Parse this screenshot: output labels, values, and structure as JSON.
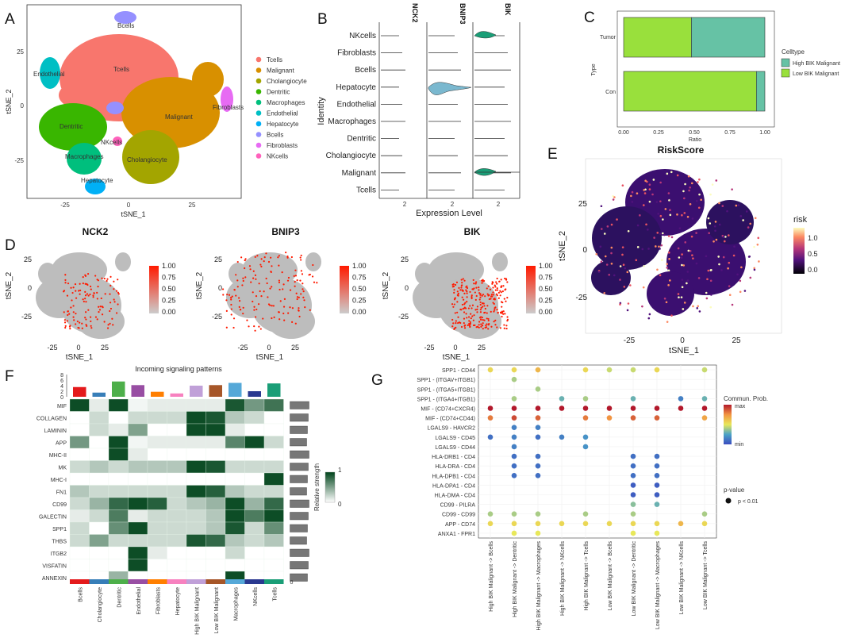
{
  "panels": {
    "A": {
      "label": "A",
      "legend": [
        {
          "name": "Tcells",
          "color": "#f8766d"
        },
        {
          "name": "Malignant",
          "color": "#d89000"
        },
        {
          "name": "Cholangiocyte",
          "color": "#a3a500"
        },
        {
          "name": "Dentritic",
          "color": "#39b600"
        },
        {
          "name": "Macrophages",
          "color": "#00bf7d"
        },
        {
          "name": "Endothelial",
          "color": "#00bfc4"
        },
        {
          "name": "Hepatocyte",
          "color": "#00b0f6"
        },
        {
          "name": "Bcells",
          "color": "#9590ff"
        },
        {
          "name": "Fibroblasts",
          "color": "#e76bf3"
        },
        {
          "name": "NKcells",
          "color": "#ff62bc"
        }
      ],
      "cluster_labels": [
        "Bcells",
        "Tcells",
        "Endothelial",
        "Malignant",
        "Fibroblasts",
        "Dentritic",
        "NKcells",
        "Macrophages",
        "Cholangiocyte",
        "Hepatocyte"
      ],
      "xlabel": "tSNE_1",
      "ylabel": "tSNE_2",
      "xticks": [
        "-25",
        "0",
        "25"
      ],
      "yticks": [
        "25",
        "0",
        "-25"
      ]
    },
    "B": {
      "label": "B",
      "genes": [
        "NCK2",
        "BNIP3",
        "BIK"
      ],
      "rows": [
        "NKcells",
        "Fibroblasts",
        "Bcells",
        "Hepatocyte",
        "Endothelial",
        "Macrophages",
        "Dentritic",
        "Cholangiocyte",
        "Malignant",
        "Tcells"
      ],
      "ylabel": "Identity",
      "xlabel": "Expression Level",
      "xtick": "2"
    },
    "C": {
      "label": "C",
      "title_legend": "Celltype",
      "xlabel": "Ratio",
      "ylabel": "Type",
      "xticks": [
        "0.00",
        "0.25",
        "0.50",
        "0.75",
        "1.00"
      ]
    },
    "D": {
      "label": "D",
      "xlabel": "tSNE_1",
      "ylabel": "tSNE_2",
      "xticks": [
        "-25",
        "0",
        "25"
      ],
      "yticks": [
        "25",
        "0",
        "-25"
      ],
      "colorbar_ticks": [
        "1.00",
        "0.75",
        "0.50",
        "0.25",
        "0.00"
      ]
    },
    "E": {
      "label": "E",
      "title": "RiskScore",
      "legend_title": "risk",
      "colorbar_ticks": [
        "1.0",
        "0.5",
        "0.0"
      ],
      "xlabel": "tSNE_1",
      "ylabel": "tSNE_2",
      "xticks": [
        "-25",
        "0",
        "25"
      ],
      "yticks": [
        "25",
        "0",
        "-25"
      ]
    },
    "F": {
      "label": "F"
    },
    "G": {
      "label": "G",
      "legend_title": "Commun. Prob.",
      "legend_max": "max",
      "legend_min": "min",
      "pvalue_title": "p-value",
      "pvalue_label": "p < 0.01"
    }
  },
  "chart_data": [
    {
      "type": "bar",
      "panel": "C",
      "categories": [
        "Tumor",
        "Con"
      ],
      "series": [
        {
          "name": "High BIK Malignant",
          "color": "#66c2a5",
          "values": [
            0.52,
            0.06
          ]
        },
        {
          "name": "Low BIK Malignant",
          "color": "#99e03c",
          "values": [
            0.48,
            0.94
          ]
        }
      ],
      "xlabel": "Ratio",
      "ylabel": "Type",
      "xlim": [
        0,
        1
      ],
      "stacked": true
    },
    {
      "type": "heatmap",
      "panel": "D",
      "titles": [
        "NCK2",
        "BNIP3",
        "BIK"
      ],
      "color_range": [
        0,
        1
      ]
    },
    {
      "type": "heatmap",
      "panel": "F",
      "title": "Incoming signaling patterns",
      "columns": [
        "Bcells",
        "Cholangiocyte",
        "Dentritic",
        "Endothelial",
        "Fibroblasts",
        "Hepatocyte",
        "High BIK Malignant",
        "Low BIK Malignant",
        "Macrophages",
        "NKcells",
        "Tcells"
      ],
      "column_colors": [
        "#e41a1c",
        "#377eb8",
        "#4daf4a",
        "#984ea3",
        "#ff7f00",
        "#f781bf",
        "#c0a0d8",
        "#a65628",
        "#55a8d8",
        "#2a3990",
        "#1a9e77"
      ],
      "top_bar_values": [
        3.5,
        1.5,
        5.5,
        4.2,
        1.8,
        1.2,
        4.0,
        4.2,
        5.0,
        2.0,
        4.8
      ],
      "top_axis_ticks": [
        "0",
        "2",
        "4",
        "6",
        "8"
      ],
      "rows": [
        "MIF",
        "COLLAGEN",
        "LAMININ",
        "APP",
        "MHC-II",
        "MK",
        "MHC-I",
        "FN1",
        "CD99",
        "GALECTIN",
        "SPP1",
        "THBS",
        "ITGB2",
        "VISFATIN",
        "ANNEXIN"
      ],
      "values": [
        [
          0.95,
          0.1,
          0.95,
          0.05,
          0.1,
          0.1,
          0.1,
          0.1,
          0.9,
          0.55,
          0.75
        ],
        [
          0.0,
          0.2,
          0.0,
          0.2,
          0.2,
          0.2,
          0.95,
          0.9,
          0.3,
          0.2,
          0.0
        ],
        [
          0.0,
          0.2,
          0.1,
          0.5,
          0.0,
          0.0,
          0.95,
          0.95,
          0.1,
          0.0,
          0.0
        ],
        [
          0.55,
          0.0,
          0.95,
          0.05,
          0.1,
          0.1,
          0.1,
          0.1,
          0.65,
          0.95,
          0.2
        ],
        [
          0.0,
          0.0,
          0.95,
          0.1,
          0.0,
          0.0,
          0.0,
          0.0,
          0.0,
          0.0,
          0.0
        ],
        [
          0.2,
          0.3,
          0.2,
          0.3,
          0.3,
          0.3,
          0.95,
          0.9,
          0.2,
          0.2,
          0.2
        ],
        [
          0.0,
          0.0,
          0.0,
          0.0,
          0.0,
          0.0,
          0.0,
          0.0,
          0.0,
          0.0,
          0.95
        ],
        [
          0.3,
          0.2,
          0.2,
          0.2,
          0.2,
          0.2,
          0.95,
          0.85,
          0.3,
          0.2,
          0.2
        ],
        [
          0.2,
          0.4,
          0.8,
          0.95,
          0.85,
          0.2,
          0.3,
          0.4,
          0.95,
          0.4,
          0.8
        ],
        [
          0.1,
          0.2,
          0.7,
          0.1,
          0.2,
          0.2,
          0.2,
          0.3,
          0.95,
          0.7,
          0.95
        ],
        [
          0.2,
          0.0,
          0.6,
          0.95,
          0.2,
          0.2,
          0.2,
          0.3,
          0.9,
          0.2,
          0.6
        ],
        [
          0.2,
          0.5,
          0.2,
          0.2,
          0.2,
          0.2,
          0.9,
          0.8,
          0.3,
          0.2,
          0.3
        ],
        [
          0.0,
          0.0,
          0.0,
          0.95,
          0.1,
          0.0,
          0.0,
          0.0,
          0.2,
          0.0,
          0.0
        ],
        [
          0.0,
          0.0,
          0.0,
          0.95,
          0.0,
          0.0,
          0.0,
          0.0,
          0.0,
          0.0,
          0.0
        ],
        [
          0.0,
          0.0,
          0.4,
          0.0,
          0.0,
          0.0,
          0.0,
          0.0,
          0.95,
          0.0,
          0.0
        ]
      ],
      "colorbar_label": "Relative strength",
      "colorbar_ticks": [
        "1",
        "0"
      ]
    },
    {
      "type": "scatter",
      "panel": "G",
      "pairs": [
        "SPP1 - CD44",
        "SPP1 - (ITGAV+ITGB1)",
        "SPP1 - (ITGA5+ITGB1)",
        "SPP1 - (ITGA4+ITGB1)",
        "MIF - (CD74+CXCR4)",
        "MIF - (CD74+CD44)",
        "LGALS9 - HAVCR2",
        "LGALS9 - CD45",
        "LGALS9 - CD44",
        "HLA-DRB1 - CD4",
        "HLA-DRA - CD4",
        "HLA-DPB1 - CD4",
        "HLA-DPA1 - CD4",
        "HLA-DMA - CD4",
        "CD99 - PILRA",
        "CD99 - CD99",
        "APP - CD74",
        "ANXA1 - FPR1"
      ],
      "interactions": [
        "High BIK Malignant -> Bcells",
        "High BIK Malignant -> Dentritic",
        "High BIK Malignant -> Macrophages",
        "High BIK Malignant -> NKcells",
        "High BIK Malignant -> Tcells",
        "Low BIK Malignant -> Bcells",
        "Low BIK Malignant -> Dentritic",
        "Low BIK Malignant -> Macrophages",
        "Low BIK Malignant -> NKcells",
        "Low BIK Malignant -> Tcells"
      ],
      "points": [
        [
          0,
          0,
          0.55
        ],
        [
          0,
          1,
          0.55
        ],
        [
          0,
          2,
          0.65
        ],
        [
          0,
          4,
          0.55
        ],
        [
          0,
          5,
          0.45
        ],
        [
          0,
          6,
          0.45
        ],
        [
          0,
          7,
          0.55
        ],
        [
          0,
          9,
          0.45
        ],
        [
          1,
          1,
          0.4
        ],
        [
          2,
          2,
          0.4
        ],
        [
          3,
          1,
          0.4
        ],
        [
          3,
          3,
          0.3
        ],
        [
          3,
          4,
          0.4
        ],
        [
          3,
          6,
          0.3
        ],
        [
          3,
          8,
          0.15
        ],
        [
          3,
          9,
          0.3
        ],
        [
          4,
          0,
          1.0
        ],
        [
          4,
          1,
          1.0
        ],
        [
          4,
          2,
          1.0
        ],
        [
          4,
          3,
          1.0
        ],
        [
          4,
          4,
          1.0
        ],
        [
          4,
          5,
          1.0
        ],
        [
          4,
          6,
          1.0
        ],
        [
          4,
          7,
          1.0
        ],
        [
          4,
          8,
          1.0
        ],
        [
          4,
          9,
          1.0
        ],
        [
          5,
          0,
          0.8
        ],
        [
          5,
          1,
          0.9
        ],
        [
          5,
          2,
          0.85
        ],
        [
          5,
          4,
          0.8
        ],
        [
          5,
          5,
          0.75
        ],
        [
          5,
          6,
          0.85
        ],
        [
          5,
          7,
          0.85
        ],
        [
          5,
          9,
          0.7
        ],
        [
          6,
          1,
          0.15
        ],
        [
          6,
          2,
          0.15
        ],
        [
          7,
          0,
          0.1
        ],
        [
          7,
          1,
          0.15
        ],
        [
          7,
          2,
          0.1
        ],
        [
          7,
          3,
          0.15
        ],
        [
          7,
          4,
          0.2
        ],
        [
          8,
          1,
          0.15
        ],
        [
          8,
          4,
          0.2
        ],
        [
          9,
          1,
          0.1
        ],
        [
          9,
          2,
          0.1
        ],
        [
          9,
          6,
          0.1
        ],
        [
          9,
          7,
          0.1
        ],
        [
          10,
          1,
          0.1
        ],
        [
          10,
          2,
          0.1
        ],
        [
          10,
          6,
          0.1
        ],
        [
          10,
          7,
          0.1
        ],
        [
          11,
          1,
          0.1
        ],
        [
          11,
          2,
          0.1
        ],
        [
          11,
          6,
          0.1
        ],
        [
          11,
          7,
          0.1
        ],
        [
          12,
          6,
          0.05
        ],
        [
          12,
          7,
          0.05
        ],
        [
          13,
          6,
          0.05
        ],
        [
          13,
          7,
          0.05
        ],
        [
          14,
          6,
          0.35
        ],
        [
          14,
          7,
          0.3
        ],
        [
          15,
          0,
          0.4
        ],
        [
          15,
          1,
          0.4
        ],
        [
          15,
          2,
          0.4
        ],
        [
          15,
          4,
          0.4
        ],
        [
          15,
          6,
          0.4
        ],
        [
          15,
          9,
          0.4
        ],
        [
          16,
          0,
          0.55
        ],
        [
          16,
          1,
          0.55
        ],
        [
          16,
          2,
          0.55
        ],
        [
          16,
          3,
          0.55
        ],
        [
          16,
          4,
          0.55
        ],
        [
          16,
          5,
          0.55
        ],
        [
          16,
          6,
          0.55
        ],
        [
          16,
          7,
          0.55
        ],
        [
          16,
          8,
          0.65
        ],
        [
          16,
          9,
          0.55
        ],
        [
          17,
          1,
          0.5
        ],
        [
          17,
          2,
          0.5
        ],
        [
          17,
          6,
          0.5
        ],
        [
          17,
          7,
          0.5
        ]
      ]
    }
  ]
}
